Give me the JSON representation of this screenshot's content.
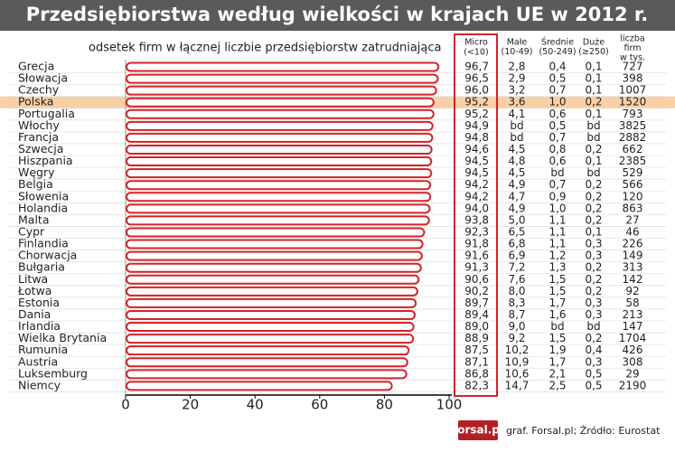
{
  "chart_data": {
    "type": "bar",
    "orientation": "horizontal",
    "title": "Przedsiębiorstwa według wielkości w krajach UE w 2012 r.",
    "subtitle": "odsetek firm w łącznej liczbie przedsiębiorstw zatrudniająca",
    "categories": [
      "Grecja",
      "Słowacja",
      "Czechy",
      "Polska",
      "Portugalia",
      "Włochy",
      "Francja",
      "Szwecja",
      "Hiszpania",
      "Węgry",
      "Belgia",
      "Słowenia",
      "Holandia",
      "Malta",
      "Cypr",
      "Finlandia",
      "Chorwacja",
      "Bułgaria",
      "Litwa",
      "Łotwa",
      "Estonia",
      "Dania",
      "Irlandia",
      "Wielka Brytania",
      "Rumunia",
      "Austria",
      "Luksemburg",
      "Niemcy"
    ],
    "value_header": [
      "Micro",
      "(<10)"
    ],
    "values": [
      96.7,
      96.5,
      96.0,
      95.2,
      95.2,
      94.9,
      94.8,
      94.6,
      94.5,
      94.5,
      94.2,
      94.2,
      94.0,
      93.8,
      92.3,
      91.8,
      91.6,
      91.3,
      90.6,
      90.2,
      89.7,
      89.4,
      89.0,
      88.9,
      87.5,
      87.1,
      86.8,
      82.3
    ],
    "value_labels": [
      "96,7",
      "96,5",
      "96,0",
      "95,2",
      "95,2",
      "94,9",
      "94,8",
      "94,6",
      "94,5",
      "94,5",
      "94,2",
      "94,2",
      "94,0",
      "93,8",
      "92,3",
      "91,8",
      "91,6",
      "91,3",
      "90,6",
      "90,2",
      "89,7",
      "89,4",
      "89,0",
      "88,9",
      "87,5",
      "87,1",
      "86,8",
      "82,3"
    ],
    "color": "#d2232a",
    "highlight_index": 3,
    "highlight_color": "#f9cfa5",
    "xlim": [
      0,
      100
    ],
    "xticks": [
      0,
      20,
      40,
      60,
      80,
      100
    ],
    "columns": [
      {
        "header": [
          "Małe",
          "(10-49)"
        ],
        "values": [
          "2,8",
          "2,9",
          "3,2",
          "3,6",
          "4,1",
          "bd",
          "bd",
          "4,5",
          "4,8",
          "4,5",
          "4,9",
          "4,7",
          "4,9",
          "5,0",
          "6,5",
          "6,8",
          "6,9",
          "7,2",
          "7,6",
          "8,0",
          "8,3",
          "8,7",
          "9,0",
          "9,2",
          "10,2",
          "10,9",
          "10,6",
          "14,7"
        ]
      },
      {
        "header": [
          "Średnie",
          "(50-249)"
        ],
        "values": [
          "0,4",
          "0,5",
          "0,7",
          "1,0",
          "0,6",
          "0,5",
          "0,7",
          "0,8",
          "0,6",
          "bd",
          "0,7",
          "0,9",
          "1,0",
          "1,1",
          "1,1",
          "1,1",
          "1,2",
          "1,3",
          "1,5",
          "1,5",
          "1,7",
          "1,6",
          "bd",
          "1,5",
          "1,9",
          "1,7",
          "2,1",
          "2,5"
        ]
      },
      {
        "header": [
          "Duże",
          "(≥250)"
        ],
        "values": [
          "0,1",
          "0,1",
          "0,1",
          "0,2",
          "0,1",
          "bd",
          "bd",
          "0,2",
          "0,1",
          "bd",
          "0,2",
          "0,2",
          "0,2",
          "0,2",
          "0,1",
          "0,3",
          "0,3",
          "0,2",
          "0,2",
          "0,2",
          "0,3",
          "0,3",
          "bd",
          "0,2",
          "0,4",
          "0,3",
          "0,5",
          "0,5"
        ]
      },
      {
        "header": [
          "liczba",
          "firm",
          "w tys."
        ],
        "values": [
          "727",
          "398",
          "1007",
          "1520",
          "793",
          "3825",
          "2882",
          "662",
          "2385",
          "529",
          "566",
          "120",
          "863",
          "27",
          "46",
          "226",
          "149",
          "313",
          "142",
          "92",
          "58",
          "213",
          "147",
          "1704",
          "426",
          "308",
          "29",
          "2190"
        ]
      }
    ],
    "logo": "forsal.pl",
    "source": "graf. Forsal.pl; Źródło: Eurostat"
  }
}
